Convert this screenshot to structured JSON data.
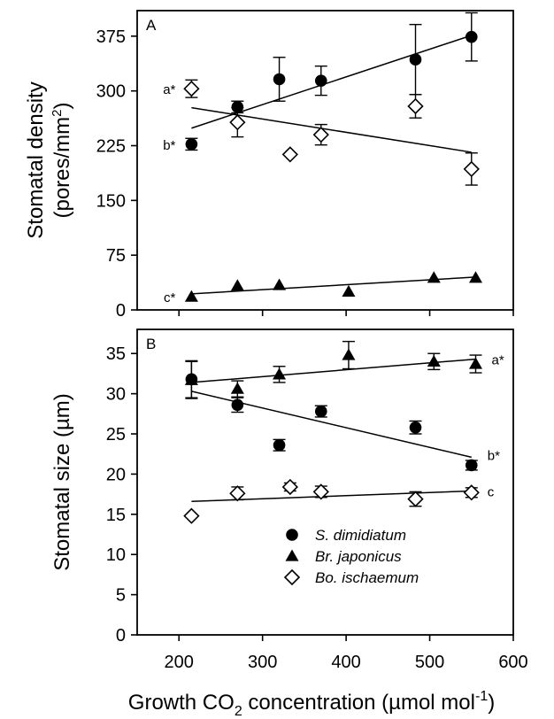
{
  "chart_data": {
    "type": "scatter",
    "xlabel_parts": [
      "Growth CO",
      "2",
      " concentration (µmol mol",
      "-1",
      ")"
    ],
    "xticks": [
      "200",
      "300",
      "400",
      "500",
      "600"
    ],
    "xlim": [
      150,
      600
    ],
    "legend": {
      "placement": "bottom-right of panel B",
      "entries": [
        {
          "label": "S. dimidiatum",
          "marker": "filled-circle"
        },
        {
          "label": "Br. japonicus",
          "marker": "filled-triangle"
        },
        {
          "label": "Bo. ischaemum",
          "marker": "open-diamond"
        }
      ]
    },
    "panels": [
      {
        "letter": "A",
        "ylabel_line1": "Stomatal density",
        "ylabel_line2_parts": [
          "(pores/mm",
          "2",
          ")"
        ],
        "ylim": [
          0,
          410
        ],
        "yticks": [
          "0",
          "75",
          "150",
          "225",
          "300",
          "375"
        ],
        "series": [
          {
            "name": "S. dimidiatum",
            "marker": "filled-circle",
            "points": [
              {
                "x": 215,
                "y": 227,
                "err": 8
              },
              {
                "x": 270,
                "y": 278,
                "err": 8
              },
              {
                "x": 320,
                "y": 316,
                "err": 30
              },
              {
                "x": 370,
                "y": 314,
                "err": 20
              },
              {
                "x": 483,
                "y": 343,
                "err": 48
              },
              {
                "x": 550,
                "y": 374,
                "err": 33
              }
            ],
            "fit": [
              [
                215,
                249
              ],
              [
                555,
                378
              ]
            ],
            "label": "b*"
          },
          {
            "name": "Br. japonicus",
            "marker": "filled-triangle",
            "points": [
              {
                "x": 215,
                "y": 18,
                "err": 0
              },
              {
                "x": 270,
                "y": 33,
                "err": 0
              },
              {
                "x": 320,
                "y": 34,
                "err": 0
              },
              {
                "x": 403,
                "y": 25,
                "err": 0
              },
              {
                "x": 505,
                "y": 44,
                "err": 0
              },
              {
                "x": 555,
                "y": 44,
                "err": 0
              }
            ],
            "fit": [
              [
                215,
                22
              ],
              [
                555,
                45
              ]
            ],
            "label": "c*"
          },
          {
            "name": "Bo. ischaemum",
            "marker": "open-diamond",
            "points": [
              {
                "x": 215,
                "y": 303,
                "err": 12
              },
              {
                "x": 270,
                "y": 257,
                "err": 20
              },
              {
                "x": 333,
                "y": 213,
                "err": 0
              },
              {
                "x": 370,
                "y": 240,
                "err": 14
              },
              {
                "x": 483,
                "y": 279,
                "err": 16
              },
              {
                "x": 550,
                "y": 193,
                "err": 22
              }
            ],
            "fit": [
              [
                215,
                277
              ],
              [
                550,
                216
              ]
            ],
            "label": "a*"
          }
        ]
      },
      {
        "letter": "B",
        "ylabel_line1": "Stomatal size (µm)",
        "ylim": [
          0,
          38
        ],
        "yticks": [
          "0",
          "5",
          "10",
          "15",
          "20",
          "25",
          "30",
          "35"
        ],
        "series": [
          {
            "name": "S. dimidiatum",
            "marker": "filled-circle",
            "points": [
              {
                "x": 215,
                "y": 31.8,
                "err": 2.3
              },
              {
                "x": 270,
                "y": 28.6,
                "err": 0.9
              },
              {
                "x": 320,
                "y": 23.6,
                "err": 0.7
              },
              {
                "x": 370,
                "y": 27.8,
                "err": 0.7
              },
              {
                "x": 483,
                "y": 25.8,
                "err": 0.8
              },
              {
                "x": 550,
                "y": 21.1,
                "err": 0.6
              }
            ],
            "fit": [
              [
                215,
                30.3
              ],
              [
                550,
                22.1
              ]
            ],
            "label": "b*"
          },
          {
            "name": "Br. japonicus",
            "marker": "filled-triangle",
            "points": [
              {
                "x": 215,
                "y": 31.7,
                "err": 2.3
              },
              {
                "x": 270,
                "y": 30.6,
                "err": 1.0
              },
              {
                "x": 320,
                "y": 32.4,
                "err": 1.0
              },
              {
                "x": 403,
                "y": 34.8,
                "err": 1.7
              },
              {
                "x": 505,
                "y": 34.0,
                "err": 1.0
              },
              {
                "x": 555,
                "y": 33.7,
                "err": 1.1
              }
            ],
            "fit": [
              [
                215,
                31.4
              ],
              [
                555,
                34.3
              ]
            ],
            "label": "a*"
          },
          {
            "name": "Bo. ischaemum",
            "marker": "open-diamond",
            "points": [
              {
                "x": 215,
                "y": 14.8,
                "err": 0
              },
              {
                "x": 270,
                "y": 17.6,
                "err": 0.8
              },
              {
                "x": 333,
                "y": 18.4,
                "err": 0.5
              },
              {
                "x": 370,
                "y": 17.8,
                "err": 0.7
              },
              {
                "x": 483,
                "y": 16.9,
                "err": 0.9
              },
              {
                "x": 550,
                "y": 17.7,
                "err": 0.6
              }
            ],
            "fit": [
              [
                215,
                16.6
              ],
              [
                550,
                17.9
              ]
            ],
            "label": "c"
          }
        ]
      }
    ]
  }
}
